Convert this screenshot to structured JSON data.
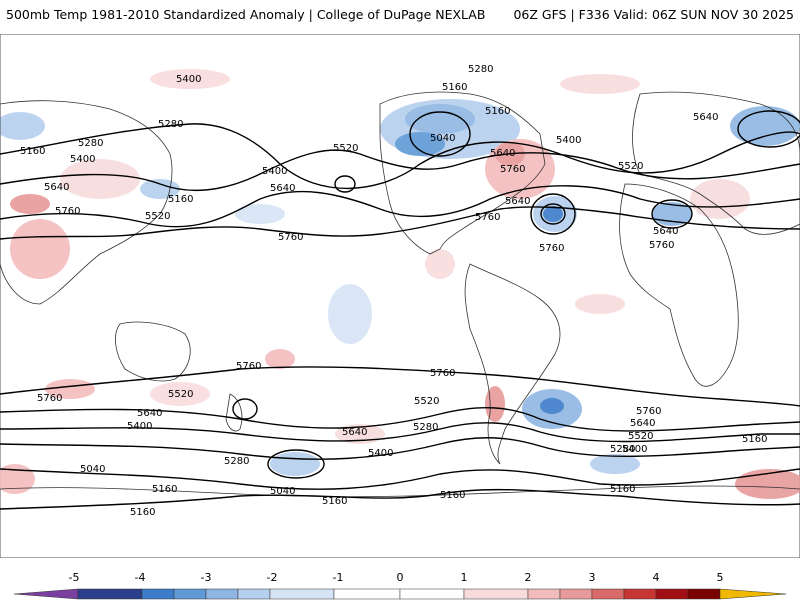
{
  "header": {
    "title": "500mb Temp 1981-2010 Standardized Anomaly | College of DuPage NEXLAB",
    "run_info": "06Z GFS | F336 Valid: 06Z SUN NOV 30 2025"
  },
  "map": {
    "contour_labels": [
      "5400",
      "5280",
      "5160",
      "5040",
      "5160",
      "5400",
      "5280",
      "5640",
      "5520",
      "5160",
      "5760",
      "5280",
      "5400",
      "5520",
      "5640",
      "5760",
      "5160",
      "5400",
      "5640",
      "5760",
      "5640",
      "5520",
      "5640",
      "5760",
      "5760",
      "5760",
      "5640",
      "5760",
      "5760",
      "5520",
      "5640",
      "5400",
      "5760",
      "5520",
      "5280",
      "5640",
      "5400",
      "5280",
      "5040",
      "5160",
      "5160",
      "5040",
      "5160",
      "5760",
      "5640",
      "5520",
      "5400",
      "5280",
      "5160",
      "5160",
      "5160"
    ]
  },
  "colorbar": {
    "ticks": [
      "-5",
      "-4",
      "-3",
      "-2",
      "-1",
      "0",
      "1",
      "2",
      "3",
      "4",
      "5"
    ],
    "colors": {
      "neg5": "#7b3fa0",
      "neg4": "#2b3f8c",
      "neg3": "#3d7cc9",
      "neg25": "#5f9ad6",
      "neg2": "#8fb6e3",
      "neg15": "#b5cfee",
      "neg1": "#d7e4f6",
      "neg05": "#ffffff",
      "pos05": "#ffffff",
      "pos1": "#f8dcdc",
      "pos15": "#f3bcbc",
      "pos2": "#e79a9a",
      "pos25": "#d96a6a",
      "pos3": "#c83535",
      "pos4": "#a10f15",
      "pos45": "#7a0000",
      "pos5": "#f0b800"
    }
  }
}
